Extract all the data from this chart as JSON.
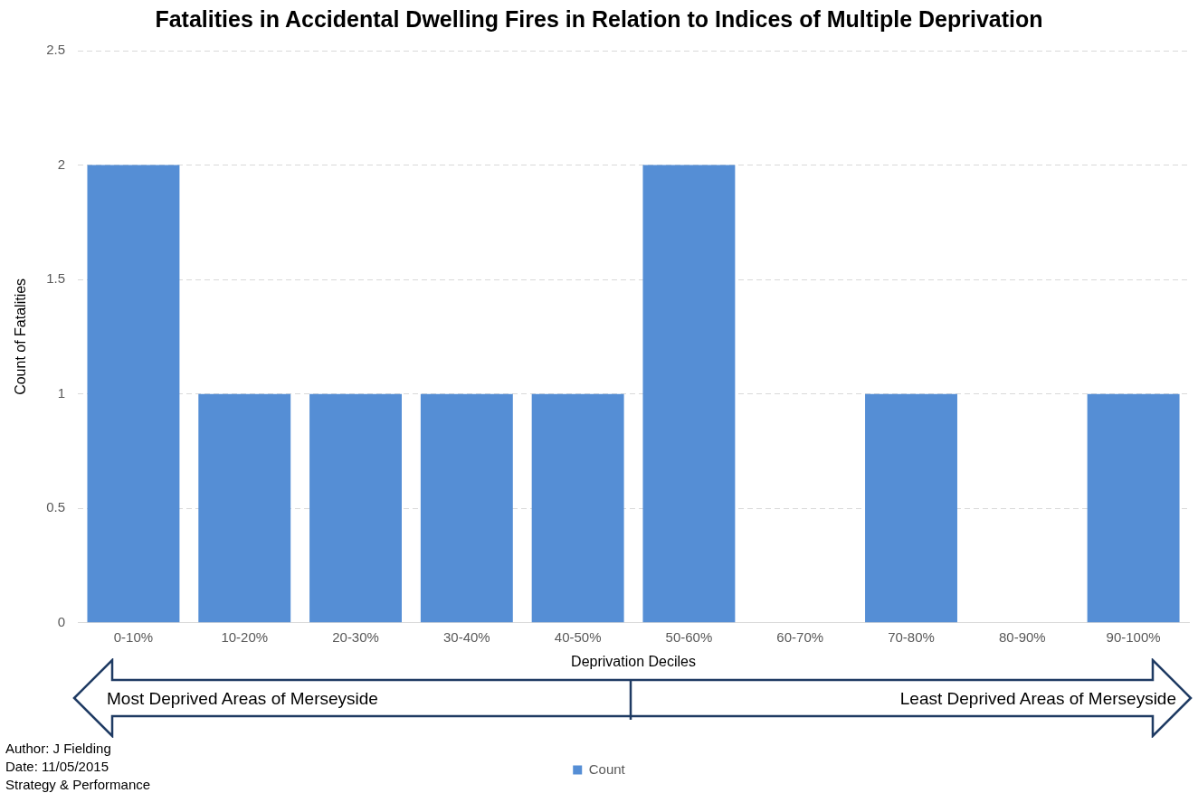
{
  "chart_data": {
    "type": "bar",
    "title": "Fatalities in Accidental Dwelling Fires in Relation to Indices of Multiple Deprivation",
    "xlabel": "Deprivation Deciles",
    "ylabel": "Count of Fatalities",
    "categories": [
      "0-10%",
      "10-20%",
      "20-30%",
      "30-40%",
      "40-50%",
      "50-60%",
      "60-70%",
      "70-80%",
      "80-90%",
      "90-100%"
    ],
    "series": [
      {
        "name": "Count",
        "color": "#558ed5",
        "values": [
          2,
          1,
          1,
          1,
          1,
          2,
          0,
          1,
          0,
          1
        ]
      }
    ],
    "ylim": [
      0,
      2.5
    ],
    "yticks": [
      0,
      0.5,
      1,
      1.5,
      2,
      2.5
    ],
    "grid": "y",
    "legend": "bottom",
    "annotations": [
      "Most Deprived Areas of Merseyside",
      "Least Deprived Areas of Merseyside",
      "Author: J Fielding",
      "Date: 11/05/2015",
      "Strategy & Performance"
    ]
  }
}
